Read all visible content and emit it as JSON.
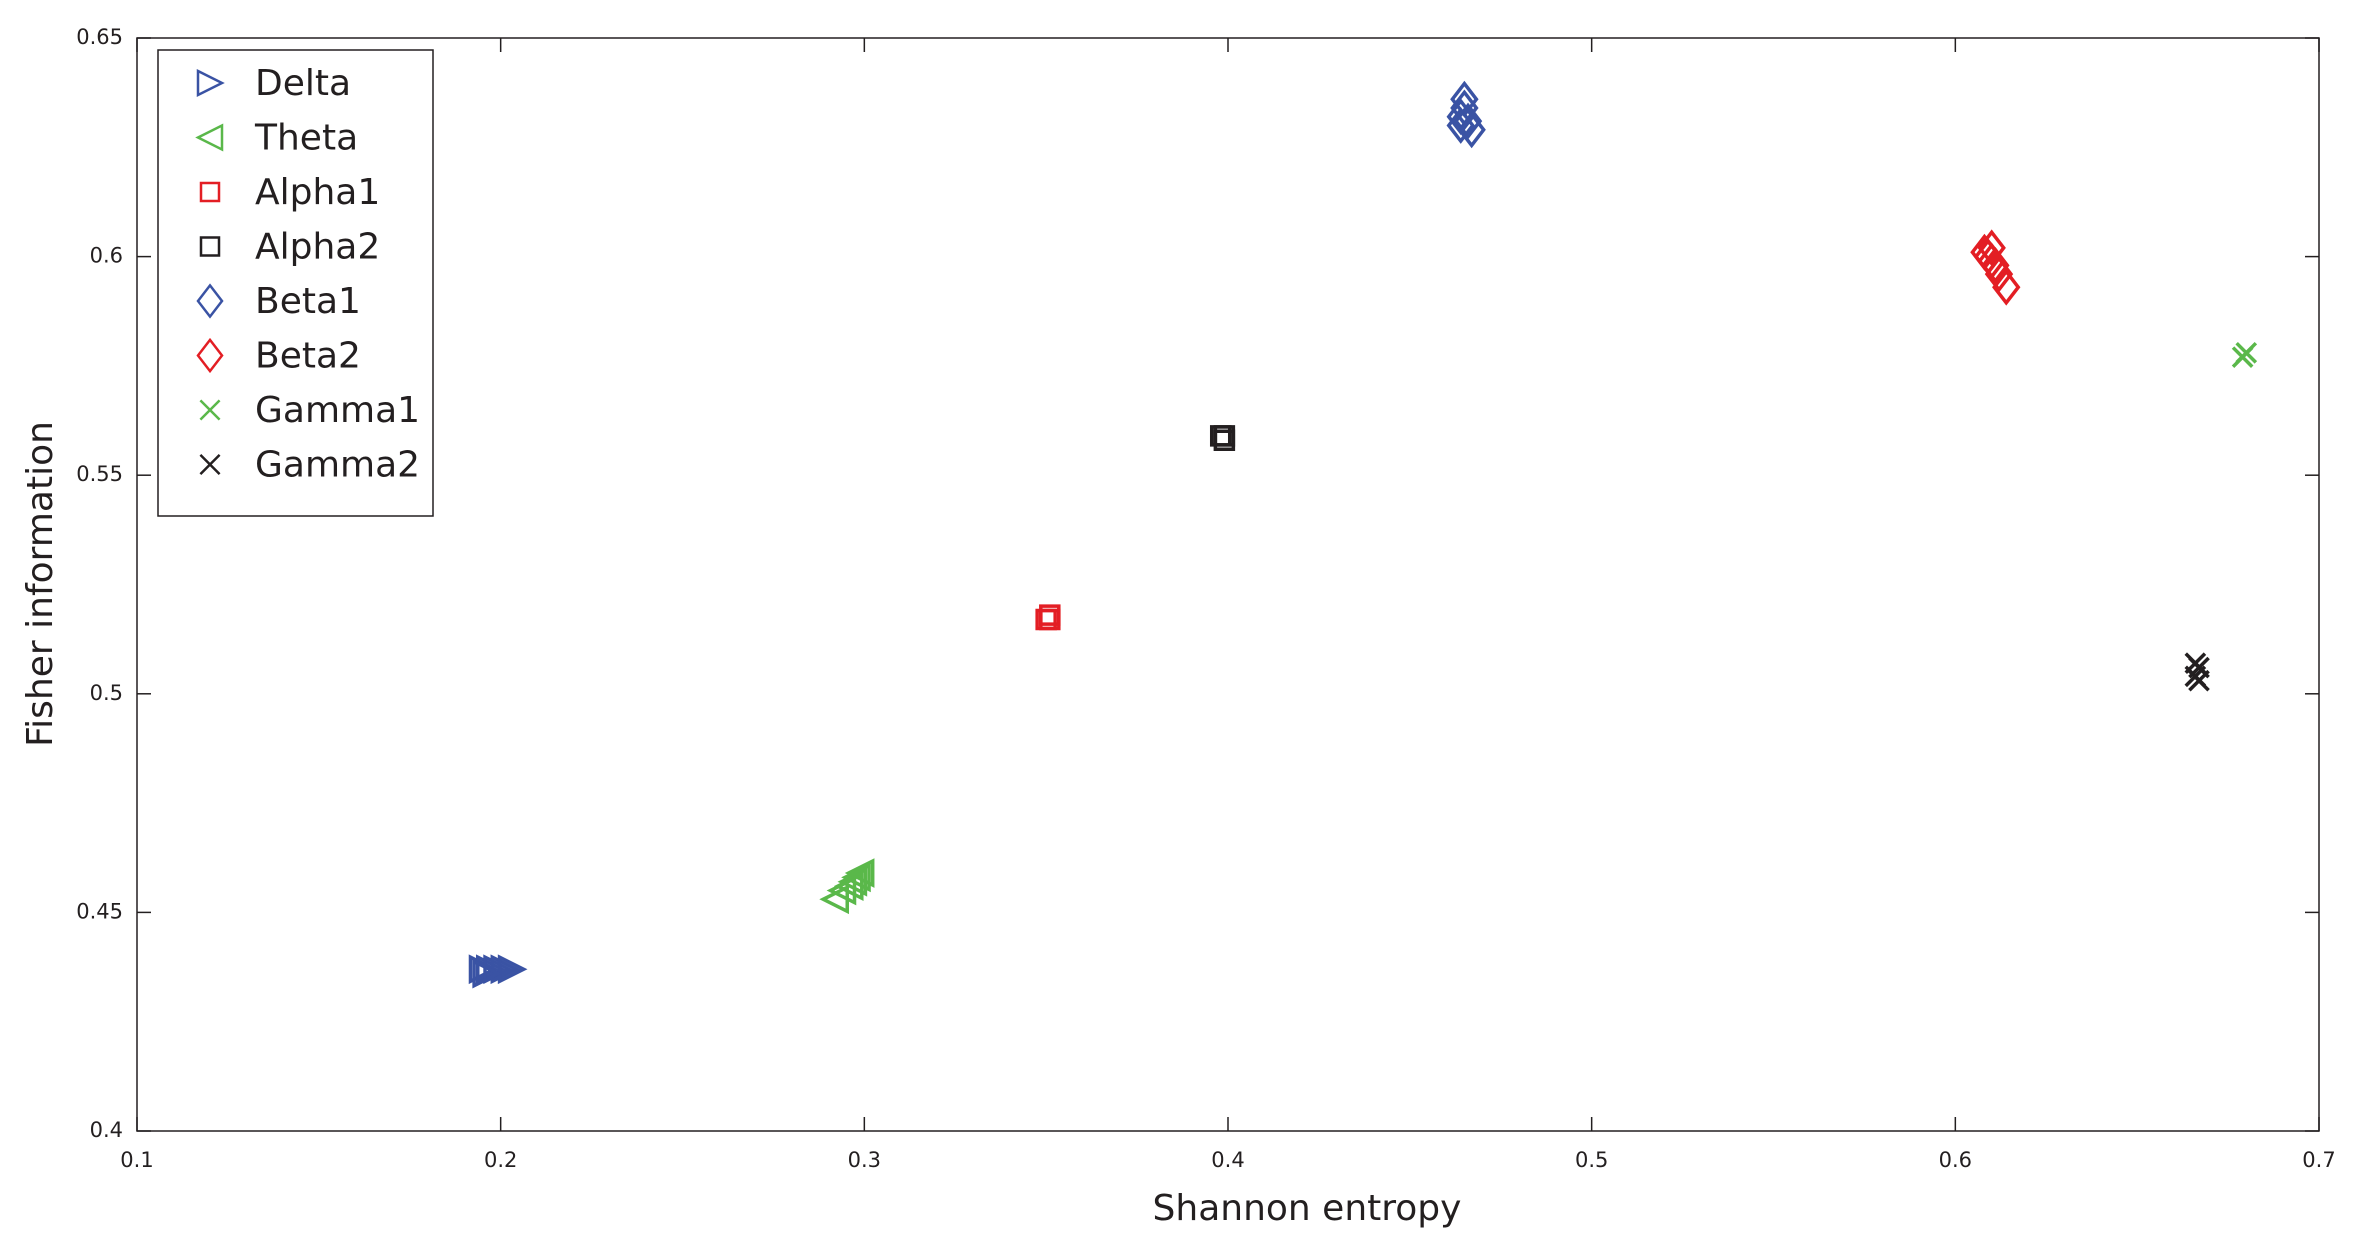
{
  "chart_data": {
    "type": "scatter",
    "x_label": "Shannon entropy",
    "y_label": "Fisher information",
    "xlim": [
      0.1,
      0.7
    ],
    "ylim": [
      0.4,
      0.65
    ],
    "xticks": [
      0.1,
      0.2,
      0.3,
      0.4,
      0.5,
      0.6,
      0.7
    ],
    "yticks": [
      0.4,
      0.45,
      0.5,
      0.55,
      0.6,
      0.65
    ],
    "grid": false,
    "legend": "upper left",
    "series": [
      {
        "name": "Delta",
        "color": "#3a53a4",
        "marker": "triangle-right",
        "x": [
          0.195,
          0.197,
          0.199,
          0.201,
          0.203,
          0.196
        ],
        "values": [
          0.437,
          0.437,
          0.437,
          0.437,
          0.437,
          0.436
        ]
      },
      {
        "name": "Theta",
        "color": "#5ab84a",
        "marker": "triangle-left",
        "x": [
          0.292,
          0.294,
          0.296,
          0.297,
          0.298,
          0.299
        ],
        "values": [
          0.453,
          0.455,
          0.456,
          0.457,
          0.458,
          0.459
        ]
      },
      {
        "name": "Alpha1",
        "color": "#e31e24",
        "marker": "square",
        "x": [
          0.351,
          0.351,
          0.35
        ],
        "values": [
          0.517,
          0.518,
          0.517
        ]
      },
      {
        "name": "Alpha2",
        "color": "#231f20",
        "marker": "square",
        "x": [
          0.399,
          0.399,
          0.398
        ],
        "values": [
          0.558,
          0.559,
          0.559
        ]
      },
      {
        "name": "Beta1",
        "color": "#3a53a4",
        "marker": "diamond",
        "x": [
          0.464,
          0.465,
          0.465,
          0.464,
          0.467,
          0.466
        ],
        "values": [
          0.632,
          0.634,
          0.636,
          0.63,
          0.629,
          0.631
        ]
      },
      {
        "name": "Beta2",
        "color": "#e31e24",
        "marker": "diamond",
        "x": [
          0.608,
          0.609,
          0.61,
          0.611,
          0.612,
          0.614,
          0.61
        ],
        "values": [
          0.601,
          0.6,
          0.599,
          0.598,
          0.596,
          0.593,
          0.602
        ]
      },
      {
        "name": "Gamma1",
        "color": "#5ab84a",
        "marker": "x",
        "x": [
          0.68,
          0.679
        ],
        "values": [
          0.578,
          0.577
        ]
      },
      {
        "name": "Gamma2",
        "color": "#231f20",
        "marker": "x",
        "x": [
          0.666,
          0.667,
          0.666,
          0.667
        ],
        "values": [
          0.504,
          0.506,
          0.507,
          0.503
        ]
      }
    ]
  }
}
